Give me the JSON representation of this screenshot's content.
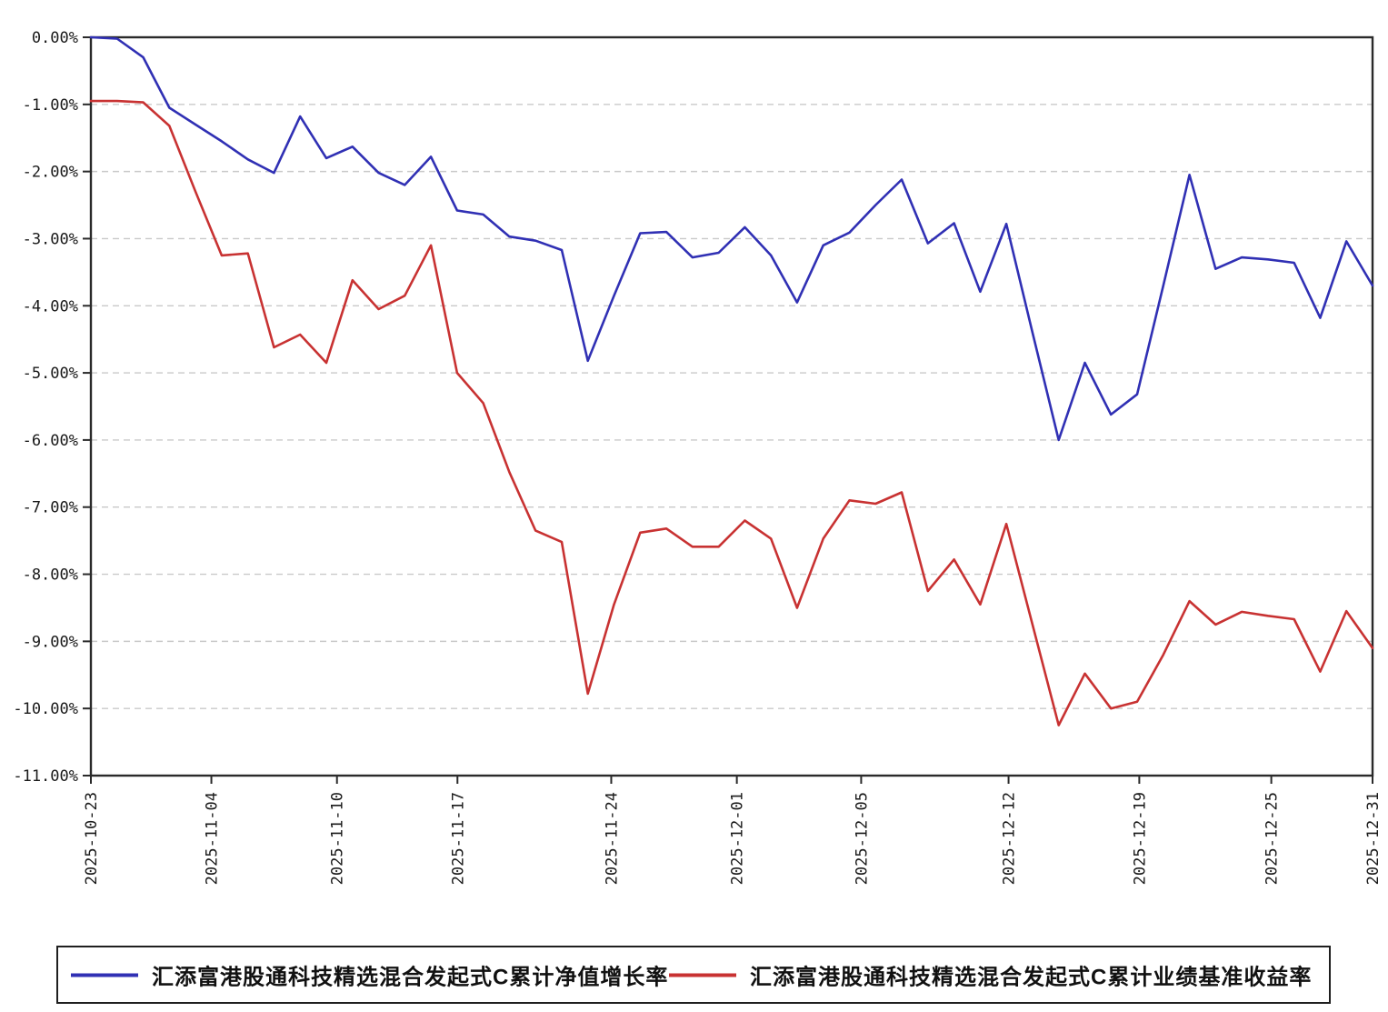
{
  "chart_data": {
    "type": "line",
    "title": "",
    "xlabel": "",
    "ylabel": "",
    "ylim": [
      -11,
      0
    ],
    "grid": "horizontal-dashed",
    "legend_position": "bottom",
    "y_tick_labels": [
      "0.00%",
      "-1.00%",
      "-2.00%",
      "-3.00%",
      "-4.00%",
      "-5.00%",
      "-6.00%",
      "-7.00%",
      "-8.00%",
      "-9.00%",
      "-10.00%",
      "-11.00%"
    ],
    "y_tick_values": [
      0,
      -1,
      -2,
      -3,
      -4,
      -5,
      -6,
      -7,
      -8,
      -9,
      -10,
      -11
    ],
    "x_ticks": [
      {
        "label": "2025-10-23",
        "pos": 0.0
      },
      {
        "label": "2025-11-04",
        "pos": 0.094
      },
      {
        "label": "2025-11-10",
        "pos": 0.192
      },
      {
        "label": "2025-11-17",
        "pos": 0.286
      },
      {
        "label": "2025-11-24",
        "pos": 0.406
      },
      {
        "label": "2025-12-01",
        "pos": 0.504
      },
      {
        "label": "2025-12-05",
        "pos": 0.601
      },
      {
        "label": "2025-12-12",
        "pos": 0.716
      },
      {
        "label": "2025-12-19",
        "pos": 0.818
      },
      {
        "label": "2025-12-25",
        "pos": 0.921
      },
      {
        "label": "2025-12-31",
        "pos": 1.0
      }
    ],
    "x_range_label": "2025-10-23 to 2025-12-31",
    "series": [
      {
        "name": "汇添富港股通科技精选混合发起式C累计净值增长率",
        "color": "#3030b4",
        "values": [
          0.0,
          -0.02,
          -0.3,
          -1.05,
          -1.3,
          -1.55,
          -1.82,
          -2.02,
          -1.18,
          -1.8,
          -1.63,
          -2.02,
          -2.2,
          -1.78,
          -2.58,
          -2.64,
          -2.97,
          -3.03,
          -3.17,
          -4.82,
          -3.85,
          -2.92,
          -2.9,
          -3.28,
          -3.21,
          -2.83,
          -3.25,
          -3.95,
          -3.1,
          -2.91,
          -2.5,
          -2.12,
          -3.07,
          -2.77,
          -3.79,
          -2.78,
          -4.4,
          -6.0,
          -4.85,
          -5.62,
          -5.32,
          -3.7,
          -2.05,
          -3.45,
          -3.28,
          -3.31,
          -3.36,
          -4.18,
          -3.04,
          -3.7
        ]
      },
      {
        "name": "汇添富港股通科技精选混合发起式C累计业绩基准收益率",
        "color": "#c83232",
        "values": [
          -0.95,
          -0.95,
          -0.97,
          -1.32,
          -2.3,
          -3.25,
          -3.22,
          -4.62,
          -4.43,
          -4.85,
          -3.62,
          -4.05,
          -3.85,
          -3.1,
          -5.0,
          -5.45,
          -6.48,
          -7.35,
          -7.52,
          -9.78,
          -8.45,
          -7.38,
          -7.32,
          -7.59,
          -7.59,
          -7.2,
          -7.47,
          -8.5,
          -7.47,
          -6.9,
          -6.95,
          -6.78,
          -8.25,
          -7.78,
          -8.45,
          -7.25,
          -8.75,
          -10.25,
          -9.48,
          -10.0,
          -9.9,
          -9.2,
          -8.4,
          -8.75,
          -8.56,
          -8.62,
          -8.67,
          -9.45,
          -8.55,
          -9.1
        ]
      }
    ],
    "axis_color": "#2a2a2a",
    "gridline_color": "#c9c9c9"
  }
}
